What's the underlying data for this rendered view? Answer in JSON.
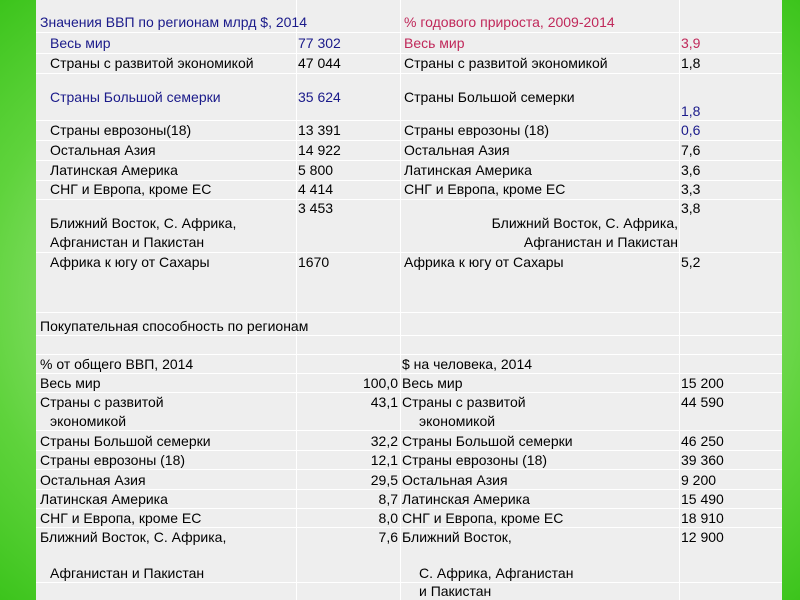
{
  "gdp": {
    "header_left": "Значения ВВП по регионам млрд $, 2014",
    "header_right": "% годового прироста, 2009-2014",
    "rows": [
      {
        "name": "Весь мир",
        "value": "77 302",
        "name2": "Весь мир",
        "growth": "3,9"
      },
      {
        "name": "Страны с развитой экономикой",
        "value": "47 044",
        "name2": "Страны с развитой экономикой",
        "growth": "1,8"
      },
      {
        "name": "Страны Большой семерки",
        "value": "35 624",
        "name2": "Страны Большой семерки",
        "growth": "1,8"
      },
      {
        "name": "Страны еврозоны(18)",
        "value": "13 391",
        "name2": "Страны еврозоны (18)",
        "growth": "0,6"
      },
      {
        "name": "Остальная Азия",
        "value": "14 922",
        "name2": "Остальная Азия",
        "growth": "7,6"
      },
      {
        "name": "Латинская Америка",
        "value": "5 800",
        "name2": "Латинская Америка",
        "growth": "3,6"
      },
      {
        "name": "СНГ и Европа, кроме ЕС",
        "value": "4 414",
        "name2": "СНГ и Европа, кроме ЕС",
        "growth": "3,3"
      },
      {
        "name_l1": "Ближний Восток, С. Африка,",
        "name_l2": "Афганистан и Пакистан",
        "value": "3 453",
        "name2_l1": "Ближний Восток, С. Африка,",
        "name2_l2": "Афганистан и Пакистан",
        "growth": "3,8"
      },
      {
        "name": "Африка к югу от Сахары",
        "value": "1670",
        "name2": "Африка к югу от Сахары",
        "growth": "5,2"
      }
    ]
  },
  "ppp": {
    "title": "Покупательная способность по регионам",
    "header_left": "% от общего ВВП, 2014",
    "header_right": "$ на человека, 2014",
    "rows": [
      {
        "name": "Весь мир",
        "pct": "100,0",
        "name2": "Весь мир",
        "per_capita": "15 200"
      },
      {
        "name_l1": "Страны с развитой",
        "name_l2": "экономикой",
        "pct": "43,1",
        "name2_l1": "Страны с развитой",
        "name2_l2": "экономикой",
        "per_capita": "44 590"
      },
      {
        "name": "Страны Большой семерки",
        "pct": "32,2",
        "name2": "Страны Большой семерки",
        "per_capita": "46 250"
      },
      {
        "name": "Страны еврозоны (18)",
        "pct": "12,1",
        "name2": "Страны еврозоны (18)",
        "per_capita": "39 360"
      },
      {
        "name": "Остальная Азия",
        "pct": "29,5",
        "name2": "Остальная Азия",
        "per_capita": "9 200"
      },
      {
        "name": "Латинская Америка",
        "pct": "8,7",
        "name2": "Латинская Америка",
        "per_capita": "15 490"
      },
      {
        "name": "СНГ и Европа, кроме ЕС",
        "pct": "8,0",
        "name2": "СНГ и Европа, кроме ЕС",
        "per_capita": "18 910"
      },
      {
        "name_l1": "Ближний Восток, С. Африка,",
        "name_l2": "Афганистан и Пакистан",
        "pct": "7,6",
        "name2_l1": "Ближний Восток,",
        "name2_l2": "С. Африка, Афганистан",
        "name2_l3": "и Пакистан",
        "per_capita": "12 900"
      }
    ]
  },
  "colors": {
    "background_frame": "#3cc41c",
    "sheet": "#eeeeee",
    "accent_text": "#1a1a8a",
    "growth_text": "#c0285a"
  }
}
